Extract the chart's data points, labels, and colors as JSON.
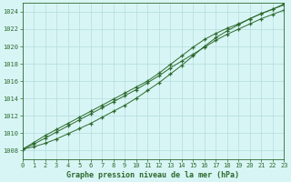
{
  "title": "Graphe pression niveau de la mer (hPa)",
  "background_color": "#d8f5f5",
  "grid_color": "#b8e0e0",
  "line_color": "#2d6a2d",
  "x_min": 0,
  "x_max": 23,
  "y_min": 1007,
  "y_max": 1025,
  "hours": [
    0,
    1,
    2,
    3,
    4,
    5,
    6,
    7,
    8,
    9,
    10,
    11,
    12,
    13,
    14,
    15,
    16,
    17,
    18,
    19,
    20,
    21,
    22,
    23
  ],
  "line1": [
    1008.1,
    1008.7,
    1009.4,
    1010.1,
    1010.8,
    1011.5,
    1012.2,
    1012.9,
    1013.6,
    1014.3,
    1015.0,
    1015.8,
    1016.6,
    1017.5,
    1018.3,
    1019.1,
    1019.9,
    1020.7,
    1021.4,
    1022.0,
    1022.6,
    1023.2,
    1023.7,
    1024.2
  ],
  "line2": [
    1008.1,
    1008.9,
    1009.7,
    1010.4,
    1011.1,
    1011.8,
    1012.5,
    1013.2,
    1013.9,
    1014.6,
    1015.3,
    1016.0,
    1016.9,
    1017.9,
    1018.9,
    1019.9,
    1020.8,
    1021.5,
    1022.1,
    1022.6,
    1023.2,
    1023.8,
    1024.3,
    1024.8
  ],
  "line3": [
    1008.1,
    1008.4,
    1008.8,
    1009.3,
    1009.9,
    1010.5,
    1011.1,
    1011.8,
    1012.5,
    1013.2,
    1014.0,
    1014.9,
    1015.8,
    1016.8,
    1017.8,
    1018.9,
    1020.0,
    1021.0,
    1021.8,
    1022.5,
    1023.2,
    1023.8,
    1024.3,
    1024.9
  ],
  "marker_hours": [
    0,
    1,
    2,
    3,
    4,
    5,
    6,
    7,
    8,
    9,
    10,
    11,
    12,
    13,
    14,
    15,
    16,
    17,
    18,
    19,
    20,
    21,
    22,
    23
  ],
  "yticks": [
    1008,
    1010,
    1012,
    1014,
    1016,
    1018,
    1020,
    1022,
    1024
  ],
  "xticks": [
    0,
    1,
    2,
    3,
    4,
    5,
    6,
    7,
    8,
    9,
    10,
    11,
    12,
    13,
    14,
    15,
    16,
    17,
    18,
    19,
    20,
    21,
    22,
    23
  ]
}
